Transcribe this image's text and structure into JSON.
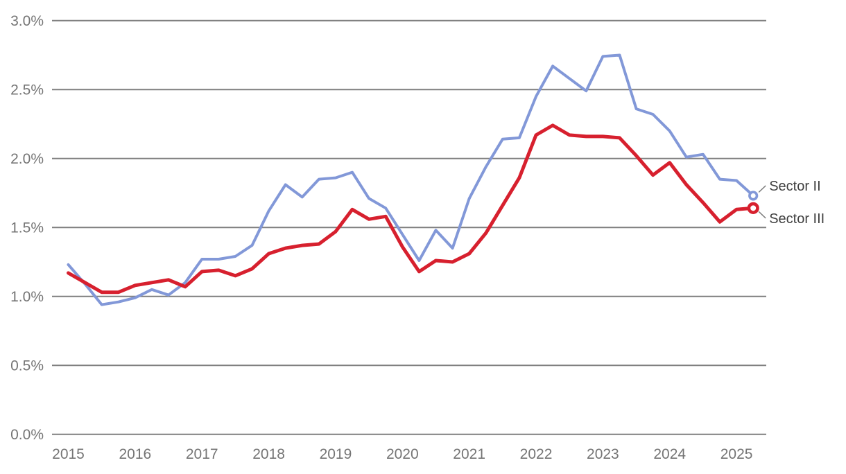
{
  "chart_data": {
    "type": "line",
    "title": "",
    "xlabel": "",
    "ylabel": "",
    "frequency": "quarterly",
    "x_range": [
      "2015-Q1",
      "2025-Q2"
    ],
    "ylim": [
      0.0,
      3.0
    ],
    "grid": "horizontal",
    "legend_position": "end-of-line-labels",
    "x_tick_labels": [
      "2015",
      "2016",
      "2017",
      "2018",
      "2019",
      "2020",
      "2021",
      "2022",
      "2023",
      "2024",
      "2025"
    ],
    "y_tick_labels": [
      "0.0%",
      "0.5%",
      "1.0%",
      "1.5%",
      "2.0%",
      "2.5%",
      "3.0%"
    ],
    "gridline_color": "#7f7f7f",
    "axis_text_color": "#757575",
    "label_text_color": "#3f3f3f",
    "end_marker_style": "open-circle",
    "series": [
      {
        "name": "Sector II",
        "color": "#8298d8",
        "values": [
          1.23,
          1.09,
          0.94,
          0.96,
          0.99,
          1.05,
          1.01,
          1.1,
          1.27,
          1.27,
          1.29,
          1.37,
          1.62,
          1.81,
          1.72,
          1.85,
          1.86,
          1.9,
          1.71,
          1.64,
          1.45,
          1.26,
          1.48,
          1.35,
          1.71,
          1.94,
          2.14,
          2.15,
          2.45,
          2.67,
          2.58,
          2.49,
          2.74,
          2.75,
          2.36,
          2.32,
          2.2,
          2.01,
          2.03,
          1.85,
          1.84,
          1.73
        ]
      },
      {
        "name": "Sector III",
        "color": "#d7202e",
        "values": [
          1.17,
          1.1,
          1.03,
          1.03,
          1.08,
          1.1,
          1.12,
          1.07,
          1.18,
          1.19,
          1.15,
          1.2,
          1.31,
          1.35,
          1.37,
          1.38,
          1.47,
          1.63,
          1.56,
          1.58,
          1.36,
          1.18,
          1.26,
          1.25,
          1.31,
          1.46,
          1.66,
          1.86,
          2.17,
          2.24,
          2.17,
          2.16,
          2.16,
          2.15,
          2.02,
          1.88,
          1.97,
          1.81,
          1.68,
          1.54,
          1.63,
          1.64
        ]
      }
    ]
  }
}
